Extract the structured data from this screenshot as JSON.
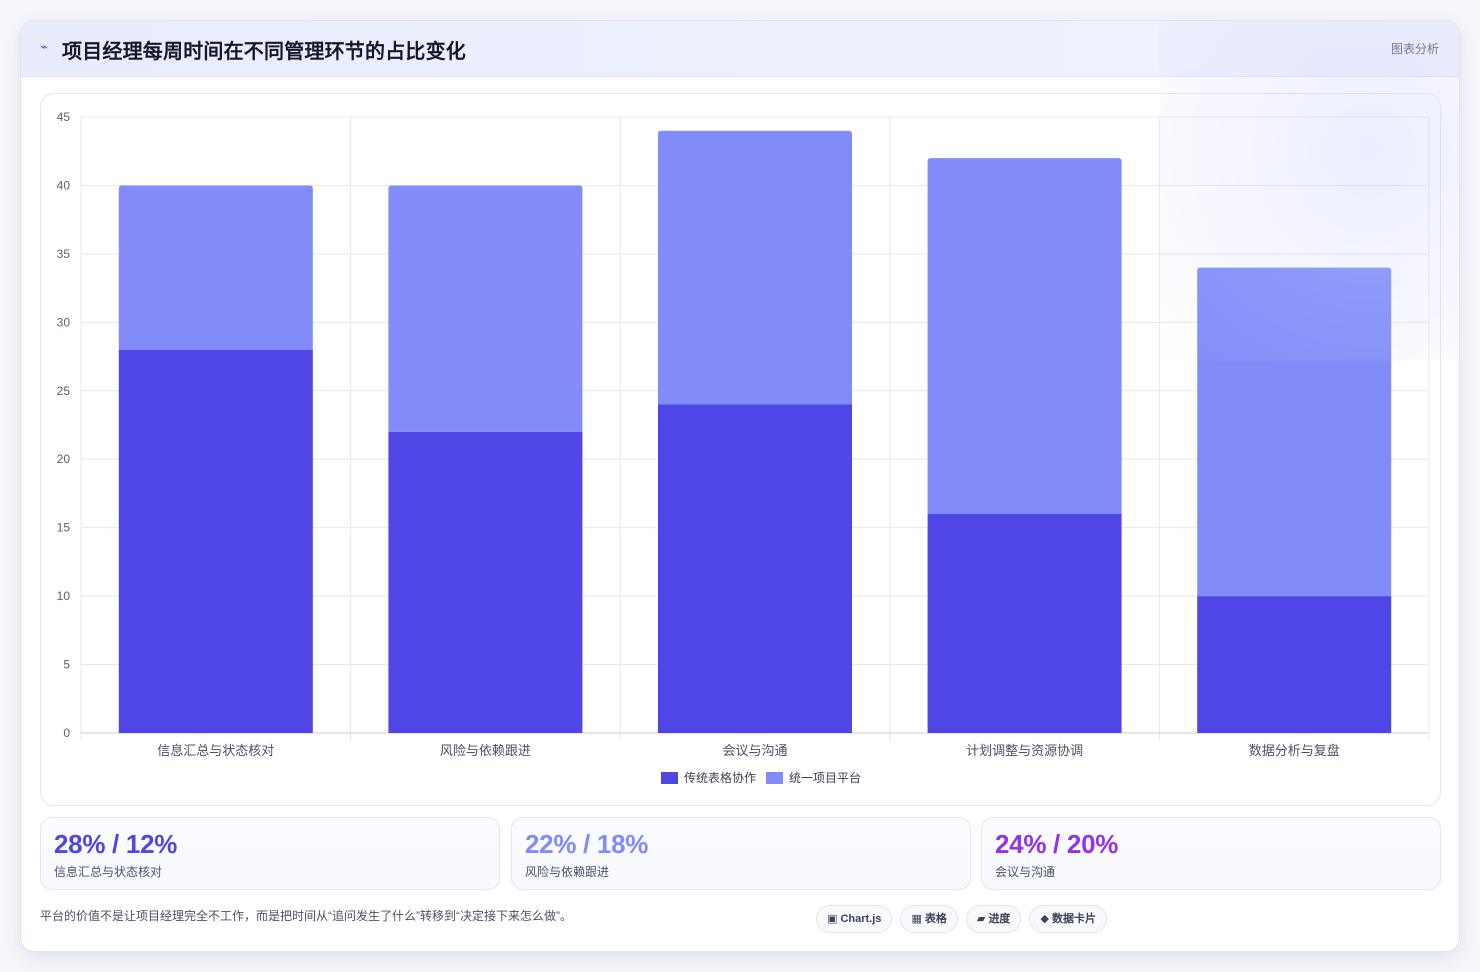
{
  "header": {
    "icon": "⌁",
    "title": "项目经理每周时间在不同管理环节的占比变化",
    "tag": "图表分析"
  },
  "chart_data": {
    "type": "bar",
    "stacked": true,
    "categories": [
      "信息汇总与状态核对",
      "风险与依赖跟进",
      "会议与沟通",
      "计划调整与资源协调",
      "数据分析与复盘"
    ],
    "series": [
      {
        "name": "传统表格协作",
        "color": "#5046e5",
        "values": [
          28,
          22,
          24,
          16,
          10
        ]
      },
      {
        "name": "统一项目平台",
        "color": "#818cf8",
        "values": [
          12,
          18,
          20,
          26,
          24
        ]
      }
    ],
    "ylim": [
      0,
      45
    ],
    "yticks": [
      0,
      5,
      10,
      15,
      20,
      25,
      30,
      35,
      40,
      45
    ],
    "grid": true,
    "legend": "bottom"
  },
  "stats": [
    {
      "value": "28% / 12%",
      "label": "信息汇总与状态核对",
      "color": "#4f46e5"
    },
    {
      "value": "22% / 18%",
      "label": "风险与依赖跟进",
      "color": "#818cf8"
    },
    {
      "value": "24% / 20%",
      "label": "会议与沟通",
      "color": "#9333ea"
    }
  ],
  "footer": {
    "note": "平台的价值不是让项目经理完全不工作，而是把时间从“追问发生了什么”转移到“决定接下来怎么做”。"
  },
  "chips": [
    {
      "icon": "▣",
      "label": "Chart.js"
    },
    {
      "icon": "▦",
      "label": "表格"
    },
    {
      "icon": "▰",
      "label": "进度"
    },
    {
      "icon": "◆",
      "label": "数据卡片"
    }
  ]
}
